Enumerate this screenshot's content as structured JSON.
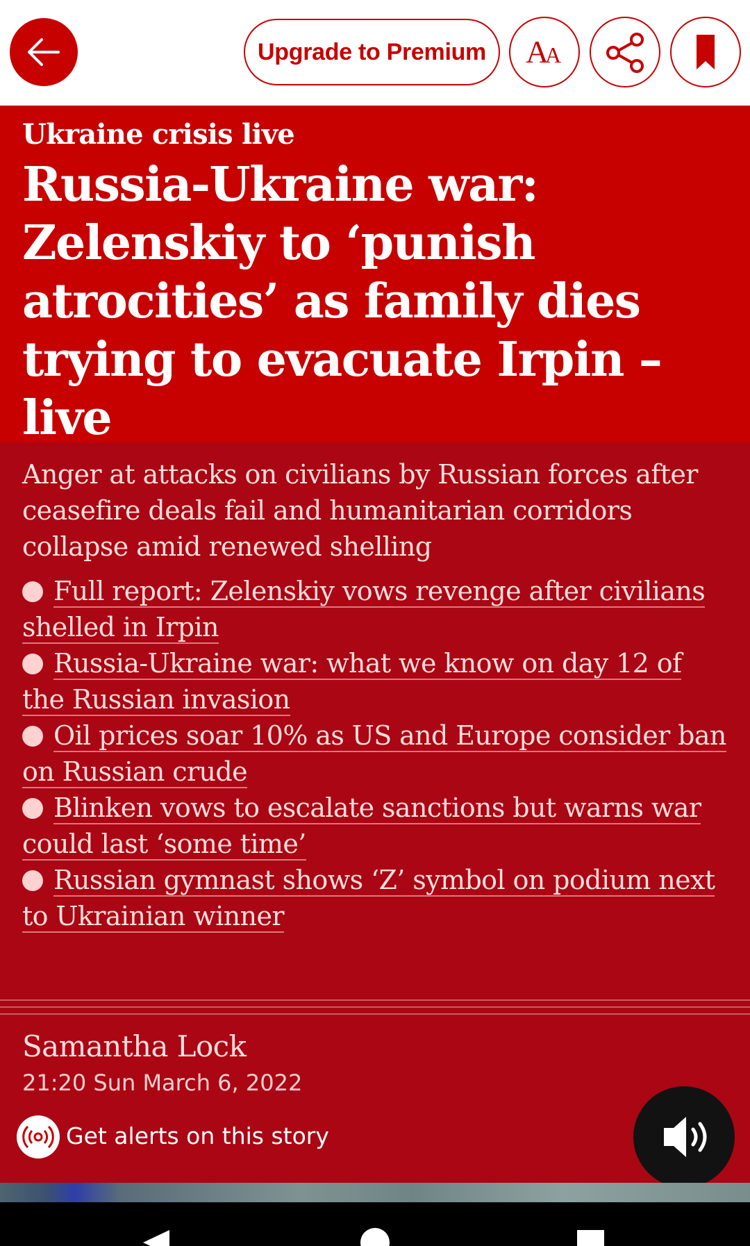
{
  "toolbar": {
    "back_icon": "arrow-left-icon",
    "premium_label": "Upgrade to Premium",
    "font_icon_text": "AA",
    "share_icon": "share-icon",
    "bookmark_icon": "bookmark-icon"
  },
  "article": {
    "kicker": "Ukraine crisis live",
    "headline": "Russia-Ukraine war: Zelenskiy to ‘punish atrocities’ as family dies trying to evacuate Irpin – live",
    "standfirst": "Anger at attacks on civilians by Russian forces after ceasefire deals fail and humanitarian corridors collapse amid renewed shelling",
    "links": [
      "Full report: Zelenskiy vows revenge after civilians shelled in Irpin",
      "Russia-Ukraine war: what we know on day 12 of the Russian invasion",
      "Oil prices soar 10% as US and Europe consider ban on Russian crude",
      "Blinken vows to escalate sanctions but warns war could last ‘some time’",
      "Russian gymnast shows ‘Z’ symbol on podium next to Ukrainian winner"
    ],
    "byline": "Samantha Lock",
    "dateline": "21:20 Sun March 6, 2022",
    "alerts_label": "Get alerts on this story",
    "alerts_icon": "broadcast-icon",
    "listen_icon": "speaker-icon"
  },
  "colors": {
    "accent": "#c70000",
    "standfirst_bg": "#ab0613",
    "listen_bg": "#121212"
  },
  "navbar": {
    "back_icon": "nav-back-icon",
    "home_icon": "nav-home-icon",
    "recents_icon": "nav-recents-icon"
  }
}
